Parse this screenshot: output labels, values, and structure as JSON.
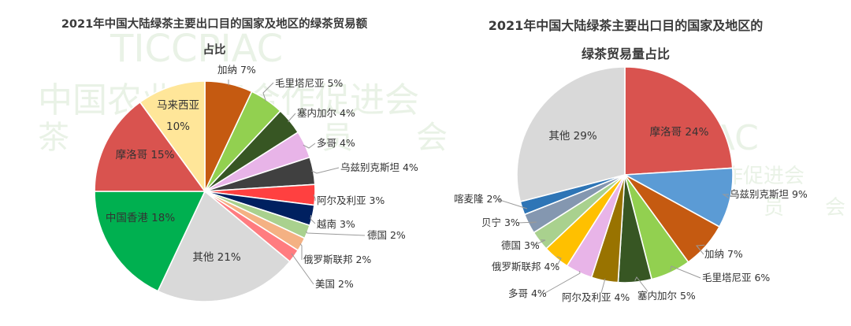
{
  "watermarks": [
    {
      "text": "TICCPIAC"
    },
    {
      "text": "中国农业国际合作促进会"
    },
    {
      "text": "茶　　叶　　委　　员　　会"
    }
  ],
  "chart_data": [
    {
      "type": "pie",
      "title_line1": "2021年中国大陆绿茶主要出口目的国家及地区的绿茶贸易额",
      "title_line2": "占比",
      "slices": [
        {
          "label": "加纳 7%",
          "value": 7,
          "color": "#c55a11",
          "placement": "outside"
        },
        {
          "label": "毛里塔尼亚 5%",
          "value": 5,
          "color": "#92d050",
          "placement": "outside"
        },
        {
          "label": "塞内加尔 4%",
          "value": 4,
          "color": "#375623",
          "placement": "outside"
        },
        {
          "label": "多哥 4%",
          "value": 4,
          "color": "#e8b4e8",
          "placement": "outside"
        },
        {
          "label": "乌兹别克斯坦 4%",
          "value": 4,
          "color": "#404040",
          "placement": "outside"
        },
        {
          "label": "阿尔及利亚 3%",
          "value": 3,
          "color": "#ff4040",
          "placement": "outside"
        },
        {
          "label": "越南 3%",
          "value": 3,
          "color": "#002060",
          "placement": "outside"
        },
        {
          "label": "德国 2%",
          "value": 2,
          "color": "#a9d18e",
          "placement": "outside"
        },
        {
          "label": "俄罗斯联邦 2%",
          "value": 2,
          "color": "#f4b183",
          "placement": "outside"
        },
        {
          "label": "美国 2%",
          "value": 2,
          "color": "#ff7c80",
          "placement": "outside"
        },
        {
          "label": "其他 21%",
          "value": 21,
          "color": "#d9d9d9",
          "placement": "inside"
        },
        {
          "label": "中国香港 18%",
          "value": 18,
          "color": "#00b050",
          "placement": "inside"
        },
        {
          "label": "摩洛哥 15%",
          "value": 15,
          "color": "#d9534f",
          "placement": "inside"
        },
        {
          "label": "马来西亚\n10%",
          "value": 10,
          "color": "#ffe699",
          "placement": "inside"
        }
      ]
    },
    {
      "type": "pie",
      "title_line1": "2021年中国大陆绿茶主要出口目的国家及地区的",
      "title_line2": "绿茶贸易量占比",
      "slices": [
        {
          "label": "摩洛哥 24%",
          "value": 24,
          "color": "#d9534f",
          "placement": "inside"
        },
        {
          "label": "乌兹别克斯坦 9%",
          "value": 9,
          "color": "#5b9bd5",
          "placement": "outside"
        },
        {
          "label": "加纳 7%",
          "value": 7,
          "color": "#c55a11",
          "placement": "outside"
        },
        {
          "label": "毛里塔尼亚 6%",
          "value": 6,
          "color": "#92d050",
          "placement": "outside"
        },
        {
          "label": "塞内加尔 5%",
          "value": 5,
          "color": "#375623",
          "placement": "outside"
        },
        {
          "label": "阿尔及利亚 4%",
          "value": 4,
          "color": "#997300",
          "placement": "outside"
        },
        {
          "label": "多哥 4%",
          "value": 4,
          "color": "#e8b4e8",
          "placement": "outside"
        },
        {
          "label": "俄罗斯联邦 4%",
          "value": 4,
          "color": "#ffc000",
          "placement": "outside"
        },
        {
          "label": "德国 3%",
          "value": 3,
          "color": "#a9d18e",
          "placement": "outside"
        },
        {
          "label": "贝宁 3%",
          "value": 3,
          "color": "#8497b0",
          "placement": "outside"
        },
        {
          "label": "喀麦隆 2%",
          "value": 2,
          "color": "#2e75b6",
          "placement": "outside"
        },
        {
          "label": "其他 29%",
          "value": 29,
          "color": "#d9d9d9",
          "placement": "inside"
        }
      ]
    }
  ]
}
